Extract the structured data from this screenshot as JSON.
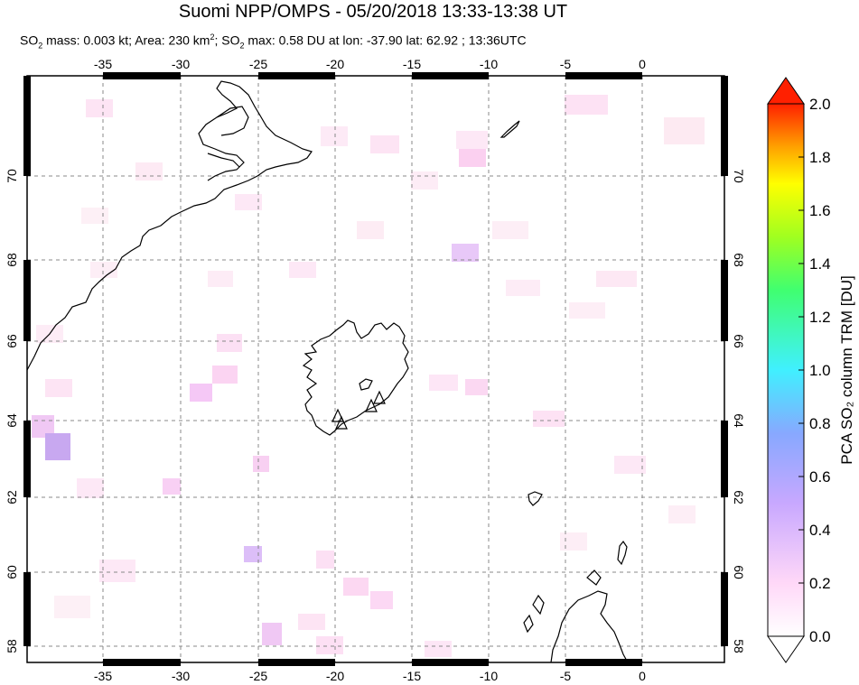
{
  "header": {
    "title": "Suomi NPP/OMPS - 05/20/2018 13:33-13:38 UT",
    "subtitle_pre": "SO",
    "subtitle_sub1": "2",
    "subtitle_mid1": " mass: 0.003 kt; Area: 230 km",
    "subtitle_sup": "2",
    "subtitle_mid2": "; SO",
    "subtitle_sub2": "2",
    "subtitle_post": " max: 0.58 DU at lon: -37.90 lat: 62.92 ; 13:36UTC"
  },
  "map": {
    "lon_ticks": [
      "-35",
      "-30",
      "-25",
      "-20",
      "-15",
      "-10",
      "-5",
      "0"
    ],
    "lat_ticks": [
      "70",
      "68",
      "66",
      "64",
      "62",
      "60",
      "58"
    ],
    "volcano_marker_icon": "triangle-icon"
  },
  "colorbar": {
    "title": "PCA SO₂ column TRM [DU]",
    "ticks": [
      "2.0",
      "1.8",
      "1.6",
      "1.4",
      "1.2",
      "1.0",
      "0.8",
      "0.6",
      "0.4",
      "0.2",
      "0.0"
    ],
    "colors": [
      "#ffffff",
      "#ffd8f8",
      "#c8a8ff",
      "#88a8ff",
      "#40e0ff",
      "#40ff80",
      "#a0ff20",
      "#ffff00",
      "#ffa000",
      "#ff3000"
    ]
  }
}
